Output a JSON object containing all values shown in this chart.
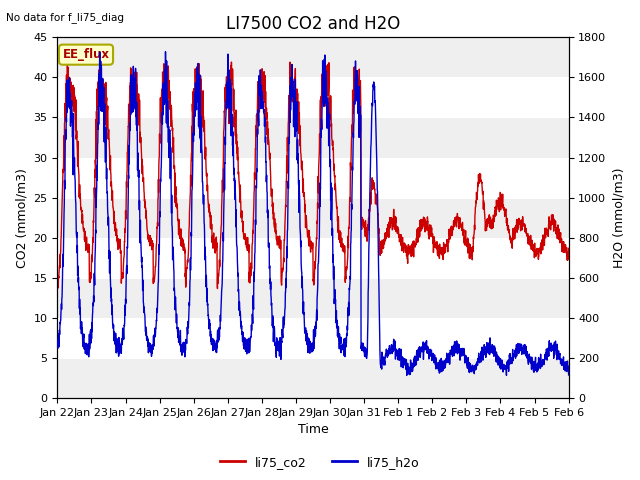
{
  "title": "LI7500 CO2 and H2O",
  "top_left_text": "No data for f_li75_diag",
  "xlabel": "Time",
  "ylabel_left": "CO2 (mmol/m3)",
  "ylabel_right": "H2O (mmol/m3)",
  "ylim_left": [
    0,
    45
  ],
  "ylim_right": [
    0,
    1800
  ],
  "yticks_left": [
    0,
    5,
    10,
    15,
    20,
    25,
    30,
    35,
    40,
    45
  ],
  "yticks_right": [
    0,
    200,
    400,
    600,
    800,
    1000,
    1200,
    1400,
    1600,
    1800
  ],
  "xtick_labels": [
    "Jan 22",
    "Jan 23",
    "Jan 24",
    "Jan 25",
    "Jan 26",
    "Jan 27",
    "Jan 28",
    "Jan 29",
    "Jan 30",
    "Jan 31",
    "Feb 1",
    "Feb 2",
    "Feb 3",
    "Feb 4",
    "Feb 5",
    "Feb 6"
  ],
  "annotation_box_text": "EE_flux",
  "annotation_box_color": "#ffffcc",
  "annotation_box_edgecolor": "#aaa800",
  "co2_color": "#cc0000",
  "h2o_color": "#0000cc",
  "background_color": "#ffffff",
  "plot_bg_color": "#ffffff",
  "band_color_dark": "#e0e0e0",
  "band_color_light": "#ebebeb",
  "legend_co2": "li75_co2",
  "legend_h2o": "li75_h2o",
  "linewidth": 1.0,
  "title_fontsize": 12,
  "axis_label_fontsize": 9,
  "tick_fontsize": 8
}
